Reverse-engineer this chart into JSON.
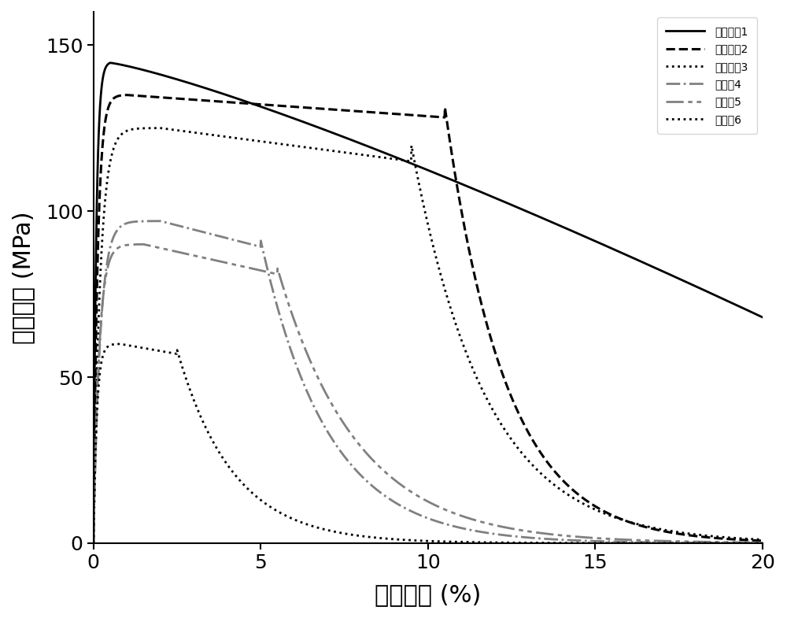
{
  "title": "",
  "xlabel": "工程应变 (%)",
  "ylabel": "工程应力 (MPa)",
  "xlim": [
    0,
    20
  ],
  "ylim": [
    0,
    160
  ],
  "xticks": [
    0,
    5,
    10,
    15,
    20
  ],
  "yticks": [
    0,
    50,
    100,
    150
  ],
  "legend_labels": [
    "实施实例1",
    "实施实例2",
    "实施实例3",
    "对比例4",
    "对比例5",
    "对比例6"
  ],
  "line_colors": [
    "#000000",
    "#000000",
    "#000000",
    "#808080",
    "#808080",
    "#000000"
  ],
  "line_styles": [
    "-",
    "--",
    ":",
    "-.",
    "-.",
    ":"
  ],
  "line_widths": [
    2.0,
    2.2,
    2.0,
    2.0,
    2.0,
    2.0
  ],
  "background_color": "#ffffff"
}
